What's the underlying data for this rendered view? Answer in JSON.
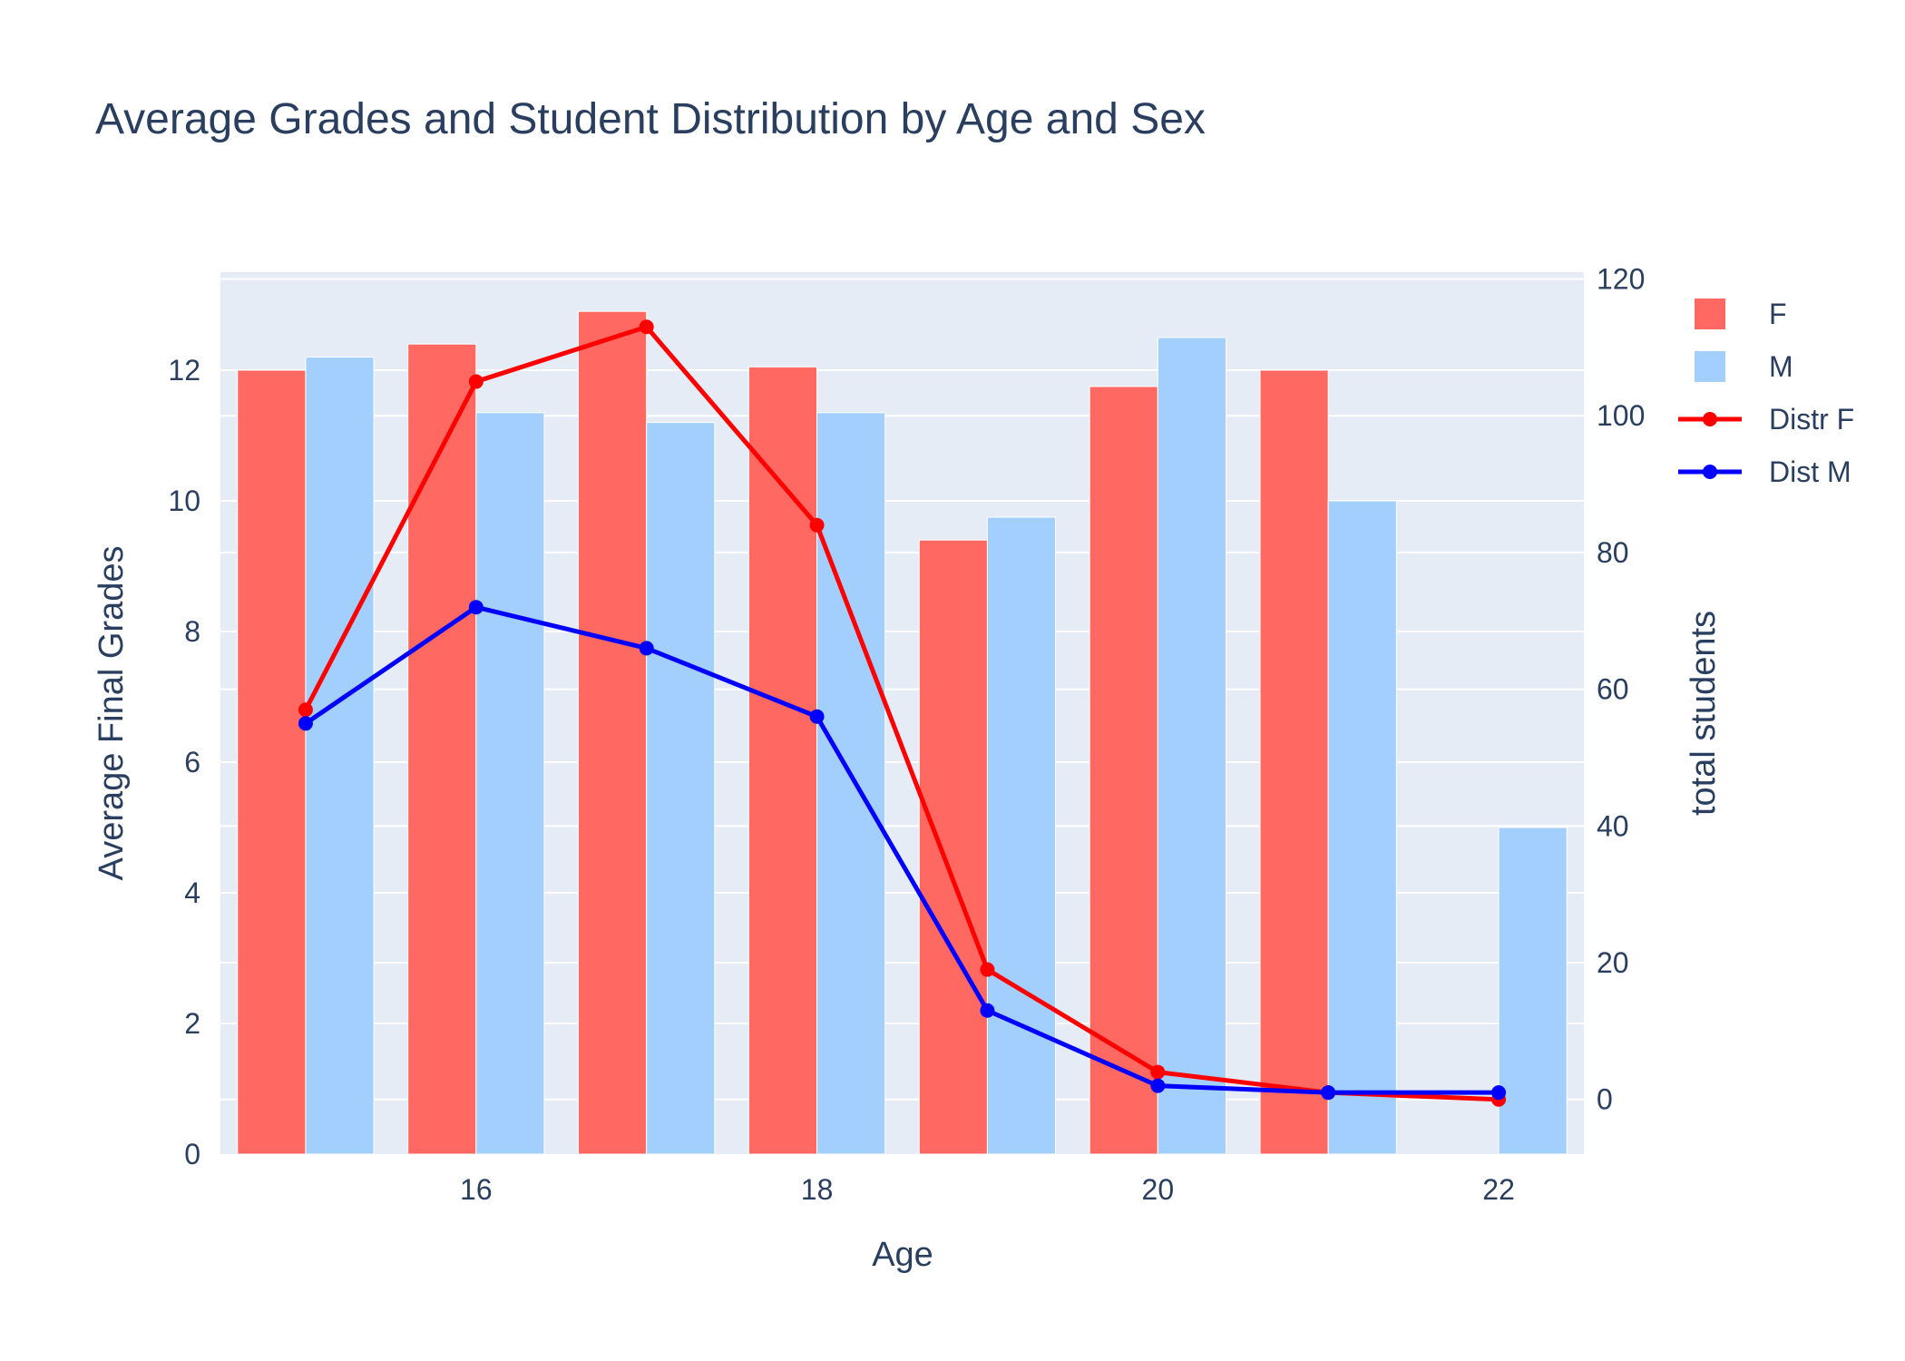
{
  "chart_data": {
    "type": "bar",
    "title": "Average Grades and Student Distribution by Age and Sex",
    "xlabel": "Age",
    "ylabel": "Average Final Grades",
    "y2label": "total students",
    "x": [
      15,
      16,
      17,
      18,
      19,
      20,
      21,
      22
    ],
    "xlim": [
      14.5,
      22.5
    ],
    "ylim": [
      0,
      13.5
    ],
    "y2lim": [
      -8,
      121
    ],
    "x_ticks": [
      "16",
      "18",
      "20",
      "22"
    ],
    "y_ticks": [
      "0",
      "2",
      "4",
      "6",
      "8",
      "10",
      "12"
    ],
    "y2_ticks": [
      "0",
      "20",
      "40",
      "60",
      "80",
      "100",
      "120"
    ],
    "grid": true,
    "legend_position": "top-right",
    "series": [
      {
        "name": "F",
        "kind": "bar",
        "axis": "y",
        "color": "#ff6961",
        "values": [
          12.0,
          12.4,
          12.9,
          12.05,
          9.4,
          11.75,
          12.0,
          0
        ]
      },
      {
        "name": "M",
        "kind": "bar",
        "axis": "y",
        "color": "#a2cffe",
        "values": [
          12.2,
          11.35,
          11.2,
          11.35,
          9.75,
          12.5,
          10.0,
          5.0
        ]
      },
      {
        "name": "Distr F",
        "kind": "line",
        "axis": "y2",
        "color": "#ff0000",
        "values": [
          57,
          105,
          113,
          84,
          19,
          4,
          1,
          0
        ]
      },
      {
        "name": "Dist M",
        "kind": "line",
        "axis": "y2",
        "color": "#0000ff",
        "values": [
          55,
          72,
          66,
          56,
          13,
          2,
          1,
          1
        ]
      }
    ]
  }
}
